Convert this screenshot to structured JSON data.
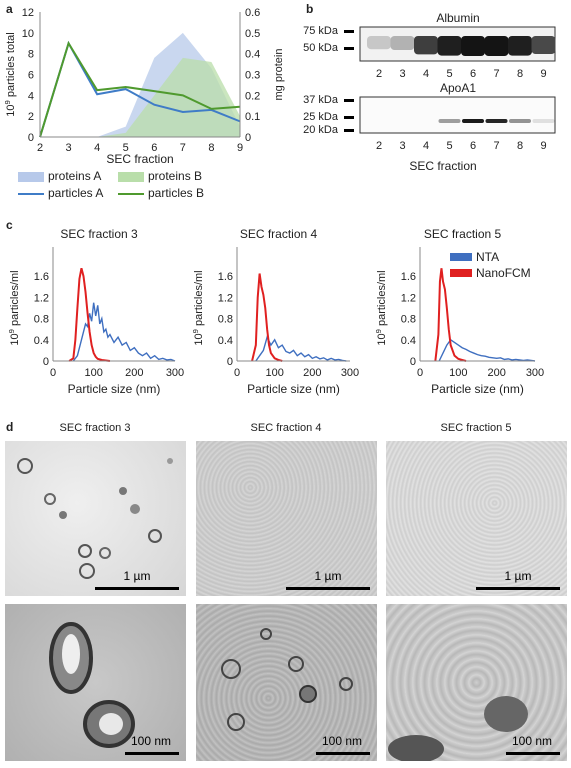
{
  "panel_labels": {
    "a": "a",
    "b": "b",
    "c": "c",
    "d": "d"
  },
  "chart_data": [
    {
      "id": "a",
      "type": "line",
      "x": [
        2,
        3,
        4,
        5,
        6,
        7,
        8,
        9
      ],
      "xlabel": "SEC fraction",
      "ylabel_left": "10^9 particles total",
      "ylabel_left_base": "10",
      "ylabel_left_sup": "9",
      "ylabel_left_rest": " particles total",
      "ylabel_right": "mg protein",
      "ylim_left": [
        0,
        12
      ],
      "yticks_left": [
        0,
        2,
        4,
        6,
        8,
        10,
        12
      ],
      "ylim_right": [
        0,
        0.6
      ],
      "yticks_right": [
        "0",
        "0.1",
        "0.2",
        "0.3",
        "0.4",
        "0.5",
        "0.6"
      ],
      "series": [
        {
          "name": "proteins  A",
          "kind": "area",
          "axis": "right",
          "color": "#b7c9ea",
          "values": [
            0,
            0,
            0,
            0.05,
            0.38,
            0.5,
            0.33,
            0.05
          ]
        },
        {
          "name": "proteins B",
          "kind": "area",
          "axis": "right",
          "color": "#b9deaa",
          "values": [
            0,
            0,
            0,
            0.02,
            0.2,
            0.38,
            0.36,
            0.1
          ]
        },
        {
          "name": "particles  A",
          "kind": "line",
          "axis": "left",
          "color": "#3f7cc7",
          "values": [
            0,
            9,
            4.1,
            4.6,
            3.1,
            2.4,
            2.6,
            1.5
          ]
        },
        {
          "name": "particles B",
          "kind": "line",
          "axis": "left",
          "color": "#4f9a2e",
          "values": [
            0,
            9,
            4.5,
            4.8,
            4.4,
            4.0,
            2.7,
            2.9
          ]
        }
      ]
    },
    {
      "id": "b-albumin",
      "type": "heatmap",
      "title": "Albumin",
      "markers": [
        "75 kDa",
        "50 kDa"
      ],
      "lanes": [
        "2",
        "3",
        "4",
        "5",
        "6",
        "7",
        "8",
        "9"
      ],
      "band_intensity": [
        0.15,
        0.25,
        0.8,
        0.95,
        1.0,
        1.0,
        0.95,
        0.75
      ],
      "xlabel": ""
    },
    {
      "id": "b-apoa1",
      "type": "heatmap",
      "title": "ApoA1",
      "markers": [
        "37 kDa",
        "25 kDa",
        "20 kDa"
      ],
      "lanes": [
        "2",
        "3",
        "4",
        "5",
        "6",
        "7",
        "8",
        "9"
      ],
      "band_intensity": [
        0,
        0,
        0,
        0.35,
        0.95,
        0.9,
        0.4,
        0.05
      ],
      "xlabel": "SEC fraction"
    },
    {
      "id": "c1",
      "type": "line",
      "title": "SEC fraction 3",
      "xlabel": "Particle size (nm)",
      "ylabel": "10^9 particles/ml",
      "ylabel_base": "10",
      "ylabel_sup": "9",
      "ylabel_rest": " particles/ml",
      "xlim": [
        0,
        300
      ],
      "xticks": [
        0,
        100,
        200,
        300
      ],
      "ylim": [
        0,
        2
      ],
      "yticks": [
        "0",
        "0.4",
        "0.8",
        "1.2",
        "1.6",
        "2"
      ],
      "series": [
        {
          "name": "NanoFCM",
          "color": "#e02020",
          "x": [
            40,
            50,
            55,
            60,
            65,
            70,
            75,
            80,
            85,
            90,
            95,
            100,
            105,
            110,
            120,
            130,
            140
          ],
          "y": [
            0,
            0.05,
            0.4,
            1.0,
            1.55,
            1.75,
            1.6,
            1.3,
            0.9,
            0.55,
            0.3,
            0.15,
            0.08,
            0.04,
            0.02,
            0.01,
            0
          ]
        },
        {
          "name": "NTA",
          "color": "#3f6fc0",
          "x": [
            50,
            60,
            70,
            80,
            85,
            90,
            95,
            100,
            105,
            110,
            115,
            120,
            125,
            130,
            135,
            140,
            150,
            160,
            170,
            180,
            190,
            200,
            210,
            220,
            230,
            240,
            250,
            260,
            270,
            280,
            290,
            300
          ],
          "y": [
            0,
            0.1,
            0.4,
            0.7,
            0.65,
            0.9,
            0.75,
            1.1,
            0.85,
            1.05,
            0.7,
            0.8,
            0.55,
            0.6,
            0.45,
            0.5,
            0.35,
            0.45,
            0.3,
            0.35,
            0.2,
            0.25,
            0.15,
            0.1,
            0.15,
            0.05,
            0.1,
            0.03,
            0.05,
            0.02,
            0.03,
            0
          ]
        }
      ]
    },
    {
      "id": "c2",
      "type": "line",
      "title": "SEC fraction 4",
      "xlabel": "Particle size (nm)",
      "ylabel": "10^9 particles/ml",
      "ylabel_base": "10",
      "ylabel_sup": "9",
      "ylabel_rest": " particles/ml",
      "xlim": [
        0,
        300
      ],
      "xticks": [
        0,
        100,
        200,
        300
      ],
      "ylim": [
        0,
        2
      ],
      "yticks": [
        "0",
        "0.4",
        "0.8",
        "1.2",
        "1.6",
        "2"
      ],
      "series": [
        {
          "name": "NanoFCM",
          "color": "#e02020",
          "x": [
            40,
            50,
            55,
            60,
            65,
            70,
            75,
            80,
            85,
            90,
            100,
            110,
            120
          ],
          "y": [
            0,
            0.3,
            1.2,
            1.65,
            1.4,
            1.25,
            1.0,
            0.6,
            0.3,
            0.15,
            0.05,
            0.02,
            0
          ]
        },
        {
          "name": "NTA",
          "color": "#3f6fc0",
          "x": [
            50,
            60,
            70,
            80,
            90,
            100,
            110,
            120,
            130,
            140,
            150,
            160,
            170,
            180,
            190,
            200,
            210,
            220,
            230,
            240,
            250,
            260,
            270,
            280,
            290
          ],
          "y": [
            0,
            0.1,
            0.2,
            0.45,
            0.3,
            0.4,
            0.25,
            0.3,
            0.18,
            0.15,
            0.2,
            0.1,
            0.15,
            0.08,
            0.12,
            0.05,
            0.08,
            0.04,
            0.06,
            0.02,
            0.05,
            0.02,
            0.03,
            0.01,
            0
          ]
        }
      ]
    },
    {
      "id": "c3",
      "type": "line",
      "title": "SEC fraction 5",
      "xlabel": "Particle size (nm)",
      "ylabel": "10^9 particles/ml",
      "ylabel_base": "10",
      "ylabel_sup": "9",
      "ylabel_rest": " particles/ml",
      "xlim": [
        0,
        300
      ],
      "xticks": [
        0,
        100,
        200,
        300
      ],
      "ylim": [
        0,
        2
      ],
      "yticks": [
        "0",
        "0.4",
        "0.8",
        "1.2",
        "1.6",
        "2"
      ],
      "legend": [
        {
          "name": "NTA",
          "color": "#3f6fc0"
        },
        {
          "name": "NanoFCM",
          "color": "#e02020"
        }
      ],
      "series": [
        {
          "name": "NanoFCM",
          "color": "#e02020",
          "x": [
            40,
            48,
            52,
            56,
            60,
            65,
            70,
            75,
            80,
            90,
            100,
            110,
            120
          ],
          "y": [
            0,
            0.5,
            1.5,
            1.75,
            1.5,
            1.35,
            1.0,
            0.6,
            0.3,
            0.1,
            0.04,
            0.02,
            0
          ]
        },
        {
          "name": "NTA",
          "color": "#3f6fc0",
          "x": [
            50,
            60,
            70,
            80,
            90,
            100,
            110,
            120,
            130,
            140,
            150,
            160,
            170,
            180,
            190,
            200,
            210,
            220,
            230,
            240,
            250,
            260,
            270,
            280,
            290,
            300
          ],
          "y": [
            0,
            0.15,
            0.3,
            0.4,
            0.35,
            0.3,
            0.25,
            0.22,
            0.18,
            0.15,
            0.12,
            0.1,
            0.09,
            0.07,
            0.06,
            0.05,
            0.06,
            0.03,
            0.04,
            0.02,
            0.03,
            0.02,
            0.01,
            0.02,
            0.01,
            0
          ]
        }
      ]
    }
  ],
  "em": {
    "titles": [
      "SEC fraction 3",
      "SEC fraction 4",
      "SEC fraction 5"
    ],
    "scale_top": "1 µm",
    "scale_bottom": "100 nm"
  }
}
